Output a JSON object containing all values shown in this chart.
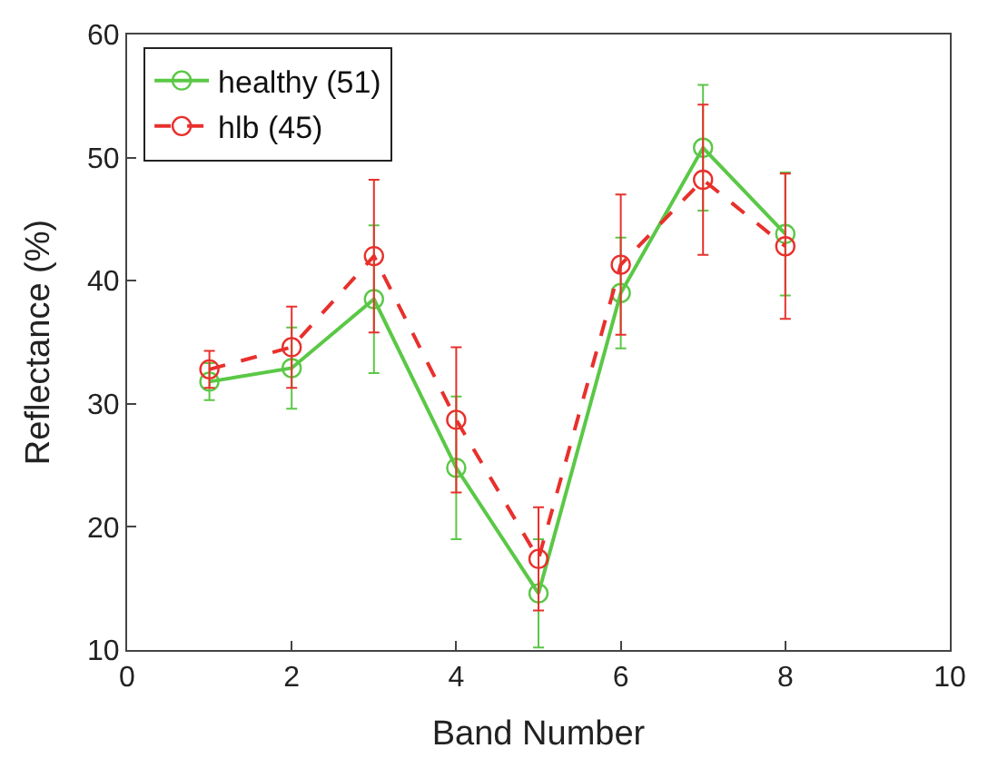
{
  "chart_data": {
    "type": "line",
    "xlabel": "Band Number",
    "ylabel": "Reflectance (%)",
    "x": [
      1,
      2,
      3,
      4,
      5,
      6,
      7,
      8
    ],
    "series": [
      {
        "name": "healthy (51)",
        "color": "#5ac846",
        "line_style": "solid",
        "values": [
          31.8,
          32.9,
          38.5,
          24.8,
          14.6,
          39,
          50.8,
          43.8
        ],
        "errors": [
          1.5,
          3.3,
          6,
          5.8,
          4.4,
          4.5,
          5.1,
          5
        ]
      },
      {
        "name": "hlb (45)",
        "color": "#e8302c",
        "line_style": "dashed",
        "values": [
          32.8,
          34.6,
          42,
          28.7,
          17.4,
          41.3,
          48.2,
          42.8
        ],
        "errors": [
          1.5,
          3.3,
          6.2,
          5.9,
          4.2,
          5.7,
          6.1,
          5.9
        ]
      }
    ],
    "marker": "circle",
    "xlim": [
      0,
      10
    ],
    "xticks": [
      0,
      2,
      4,
      6,
      8,
      10
    ],
    "ylim": [
      10,
      60
    ],
    "yticks": [
      10,
      20,
      30,
      40,
      50,
      60
    ],
    "legend": "top left"
  }
}
